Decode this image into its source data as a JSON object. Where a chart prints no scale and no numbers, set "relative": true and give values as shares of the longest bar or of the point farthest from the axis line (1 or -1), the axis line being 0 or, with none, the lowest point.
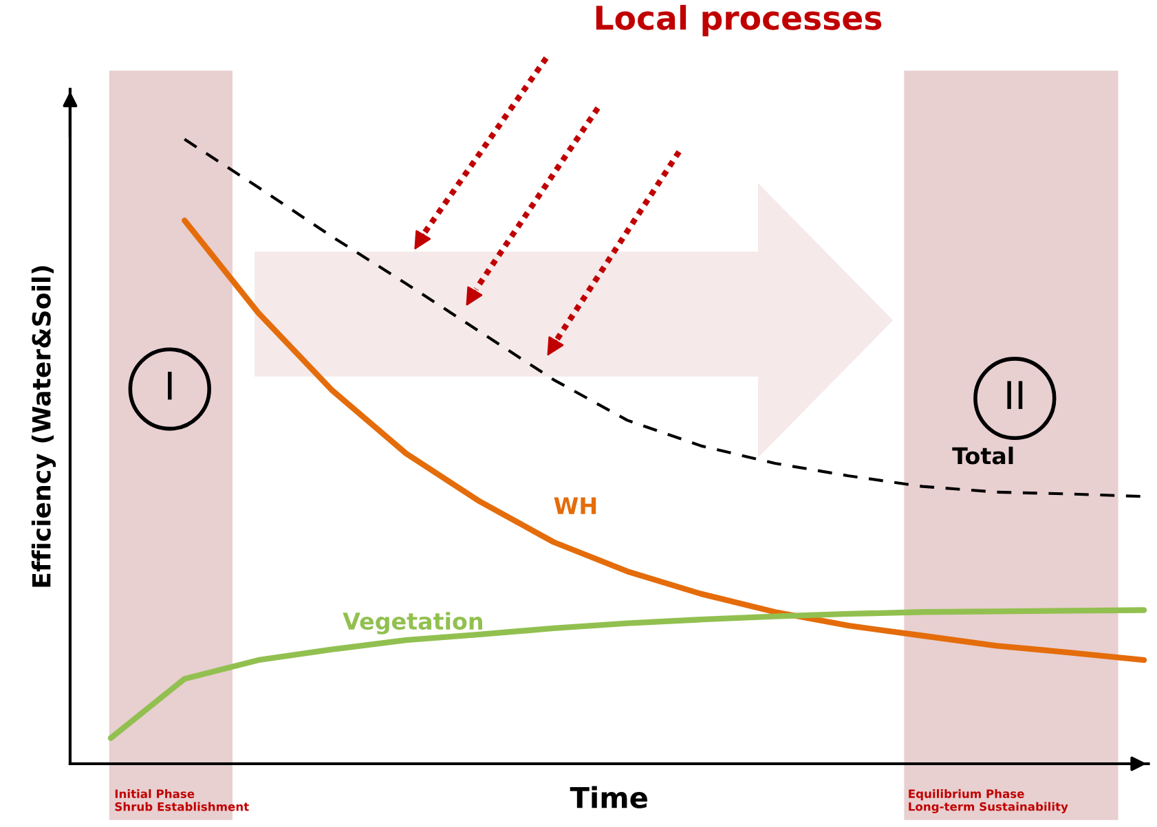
{
  "chart_data": {
    "type": "line",
    "relative": true,
    "xlabel": "Time",
    "ylabel": "Efficiency (Water&Soil)",
    "categories": [
      null,
      null,
      null,
      null,
      null,
      null,
      null,
      null,
      null,
      null,
      null,
      null,
      null,
      null,
      null
    ],
    "series": [
      {
        "name": "Total",
        "color": "#000000",
        "line_style": "dashed",
        "values": [
          null,
          1.0,
          0.923,
          0.844,
          0.769,
          0.692,
          0.615,
          0.55,
          0.509,
          0.481,
          0.461,
          0.444,
          0.435,
          0.432,
          0.428
        ]
      },
      {
        "name": "WH",
        "color": "#e46c0a",
        "values": [
          null,
          0.87,
          0.722,
          0.598,
          0.497,
          0.42,
          0.355,
          0.308,
          0.272,
          0.243,
          0.221,
          0.205,
          0.189,
          0.178,
          0.166
        ]
      },
      {
        "name": "Vegetation",
        "color": "#92c050",
        "values": [
          0.041,
          0.136,
          0.166,
          0.183,
          0.198,
          0.207,
          0.217,
          0.225,
          0.231,
          0.236,
          0.24,
          0.243,
          0.244,
          0.245,
          0.246
        ]
      }
    ],
    "annotations": [
      "Local processes",
      "Initial Phase\nShrub Establishment",
      "Equilibrium Phase\nLong-term Sustainability",
      "I",
      "II"
    ],
    "grid": false
  }
}
